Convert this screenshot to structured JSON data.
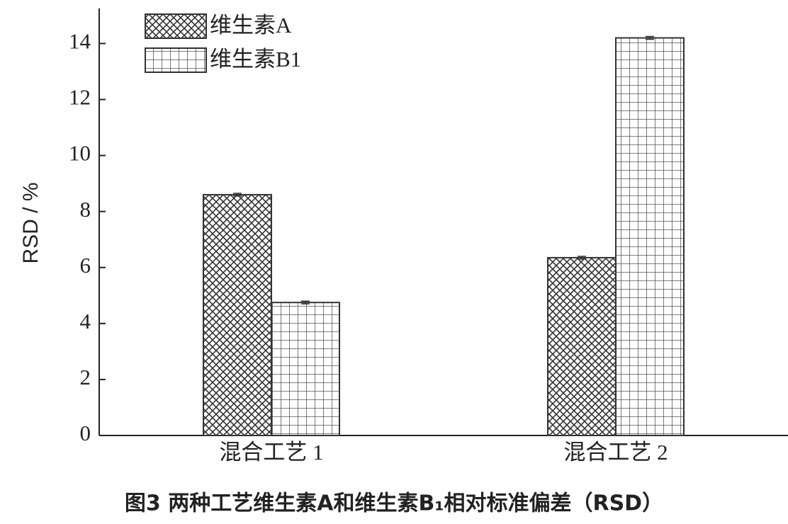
{
  "chart_data": {
    "type": "bar",
    "caption": "图3 两种工艺维生素A和维生素B₁相对标准偏差（RSD）",
    "y_label": "RSD / %",
    "categories": [
      "混合工艺 1",
      "混合工艺 2"
    ],
    "series": [
      {
        "name": "维生素A",
        "color": "#333333",
        "hatch": "crosshatch",
        "values": [
          8.6,
          6.35
        ],
        "errors": [
          0.05,
          0.05
        ]
      },
      {
        "name": "维生素B1",
        "color": "#333333",
        "hatch": "grid",
        "values": [
          4.75,
          14.2
        ],
        "errors": [
          0.05,
          0.05
        ]
      }
    ],
    "ylim": [
      0,
      15.25
    ],
    "yticks": [
      0,
      2,
      4,
      6,
      8,
      10,
      12,
      14
    ],
    "legend": "upper-left"
  }
}
